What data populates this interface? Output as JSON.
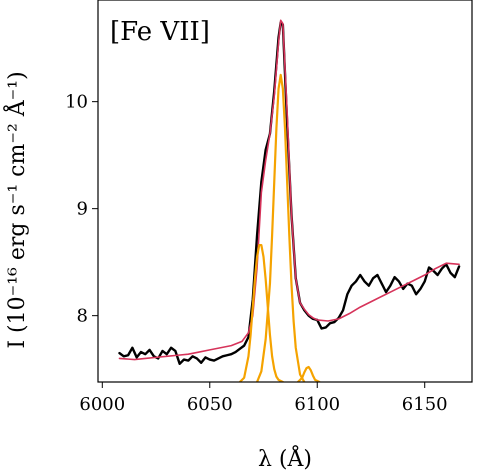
{
  "chart_data": {
    "type": "line",
    "annotation": "[Fe VII]",
    "xlabel": "λ (Å)",
    "ylabel": "I (10⁻¹⁶ erg s⁻¹ cm⁻² Å⁻¹)",
    "xlim": [
      5998,
      6172
    ],
    "ylim": [
      7.38,
      10.95
    ],
    "xticks": [
      6000,
      6050,
      6100,
      6150
    ],
    "yticks": [
      8,
      9,
      10
    ],
    "grid": false,
    "series": [
      {
        "role": "observed",
        "color": "#000000",
        "x": [
          6008,
          6010,
          6012,
          6014,
          6016,
          6018,
          6020,
          6022,
          6024,
          6026,
          6028,
          6030,
          6032,
          6034,
          6036,
          6038,
          6040,
          6042,
          6044,
          6046,
          6048,
          6050,
          6052,
          6054,
          6056,
          6058,
          6060,
          6062,
          6064,
          6066,
          6068,
          6070,
          6072,
          6074,
          6076,
          6078,
          6080,
          6082,
          6083,
          6084,
          6086,
          6088,
          6090,
          6092,
          6094,
          6096,
          6098,
          6100,
          6102,
          6104,
          6106,
          6108,
          6110,
          6112,
          6114,
          6116,
          6118,
          6120,
          6122,
          6124,
          6126,
          6128,
          6130,
          6132,
          6134,
          6136,
          6138,
          6140,
          6142,
          6144,
          6146,
          6148,
          6150,
          6152,
          6154,
          6156,
          6158,
          6160,
          6162,
          6164,
          6166
        ],
        "y": [
          7.65,
          7.62,
          7.63,
          7.7,
          7.61,
          7.66,
          7.64,
          7.68,
          7.62,
          7.6,
          7.67,
          7.64,
          7.7,
          7.67,
          7.55,
          7.59,
          7.58,
          7.62,
          7.6,
          7.56,
          7.61,
          7.59,
          7.58,
          7.6,
          7.62,
          7.63,
          7.64,
          7.66,
          7.69,
          7.72,
          7.8,
          8.15,
          8.75,
          9.25,
          9.55,
          9.7,
          10.1,
          10.6,
          10.74,
          10.72,
          9.8,
          8.95,
          8.35,
          8.12,
          8.05,
          8.0,
          7.97,
          7.96,
          7.88,
          7.89,
          7.93,
          7.94,
          7.98,
          8.05,
          8.2,
          8.28,
          8.32,
          8.38,
          8.32,
          8.28,
          8.35,
          8.38,
          8.3,
          8.22,
          8.28,
          8.36,
          8.32,
          8.25,
          8.3,
          8.28,
          8.2,
          8.25,
          8.32,
          8.45,
          8.42,
          8.38,
          8.44,
          8.48,
          8.4,
          8.36,
          8.46
        ]
      },
      {
        "role": "total-fit",
        "color": "#d6335a",
        "x": [
          6008,
          6015,
          6020,
          6025,
          6030,
          6035,
          6040,
          6045,
          6050,
          6055,
          6060,
          6065,
          6068,
          6070,
          6072,
          6074,
          6076,
          6078,
          6080,
          6082,
          6083,
          6084,
          6086,
          6088,
          6090,
          6092,
          6094,
          6096,
          6098,
          6100,
          6105,
          6110,
          6115,
          6120,
          6125,
          6130,
          6135,
          6140,
          6145,
          6150,
          6155,
          6160,
          6166
        ],
        "y": [
          7.6,
          7.59,
          7.6,
          7.61,
          7.62,
          7.63,
          7.64,
          7.66,
          7.68,
          7.7,
          7.72,
          7.76,
          7.84,
          8.0,
          8.45,
          9.15,
          9.45,
          9.7,
          10.05,
          10.55,
          10.76,
          10.73,
          9.9,
          8.95,
          8.35,
          8.12,
          8.06,
          8.01,
          7.98,
          7.96,
          7.95,
          7.97,
          8.02,
          8.08,
          8.13,
          8.18,
          8.23,
          8.28,
          8.33,
          8.38,
          8.44,
          8.49,
          8.48
        ]
      },
      {
        "role": "component-1",
        "color": "#f5a300",
        "x": [
          6064,
          6066,
          6068,
          6069,
          6070,
          6071,
          6072,
          6073,
          6074,
          6075,
          6076,
          6077,
          6078,
          6079,
          6080,
          6081,
          6082,
          6084
        ],
        "y": [
          7.38,
          7.42,
          7.62,
          7.82,
          8.08,
          8.34,
          8.55,
          8.66,
          8.66,
          8.55,
          8.34,
          8.08,
          7.82,
          7.62,
          7.5,
          7.43,
          7.4,
          7.38
        ]
      },
      {
        "role": "component-2",
        "color": "#f5a300",
        "x": [
          6072,
          6074,
          6076,
          6078,
          6079,
          6080,
          6081,
          6082,
          6083,
          6084,
          6085,
          6086,
          6087,
          6088,
          6089,
          6090,
          6092,
          6094
        ],
        "y": [
          7.38,
          7.48,
          7.78,
          8.3,
          8.75,
          9.25,
          9.75,
          10.12,
          10.25,
          10.12,
          9.75,
          9.25,
          8.75,
          8.3,
          7.95,
          7.7,
          7.45,
          7.38
        ]
      },
      {
        "role": "component-3",
        "color": "#f5a300",
        "x": [
          6091,
          6093,
          6094,
          6095,
          6096,
          6097,
          6098,
          6099,
          6101
        ],
        "y": [
          7.38,
          7.42,
          7.47,
          7.51,
          7.52,
          7.49,
          7.44,
          7.4,
          7.38
        ]
      }
    ]
  }
}
